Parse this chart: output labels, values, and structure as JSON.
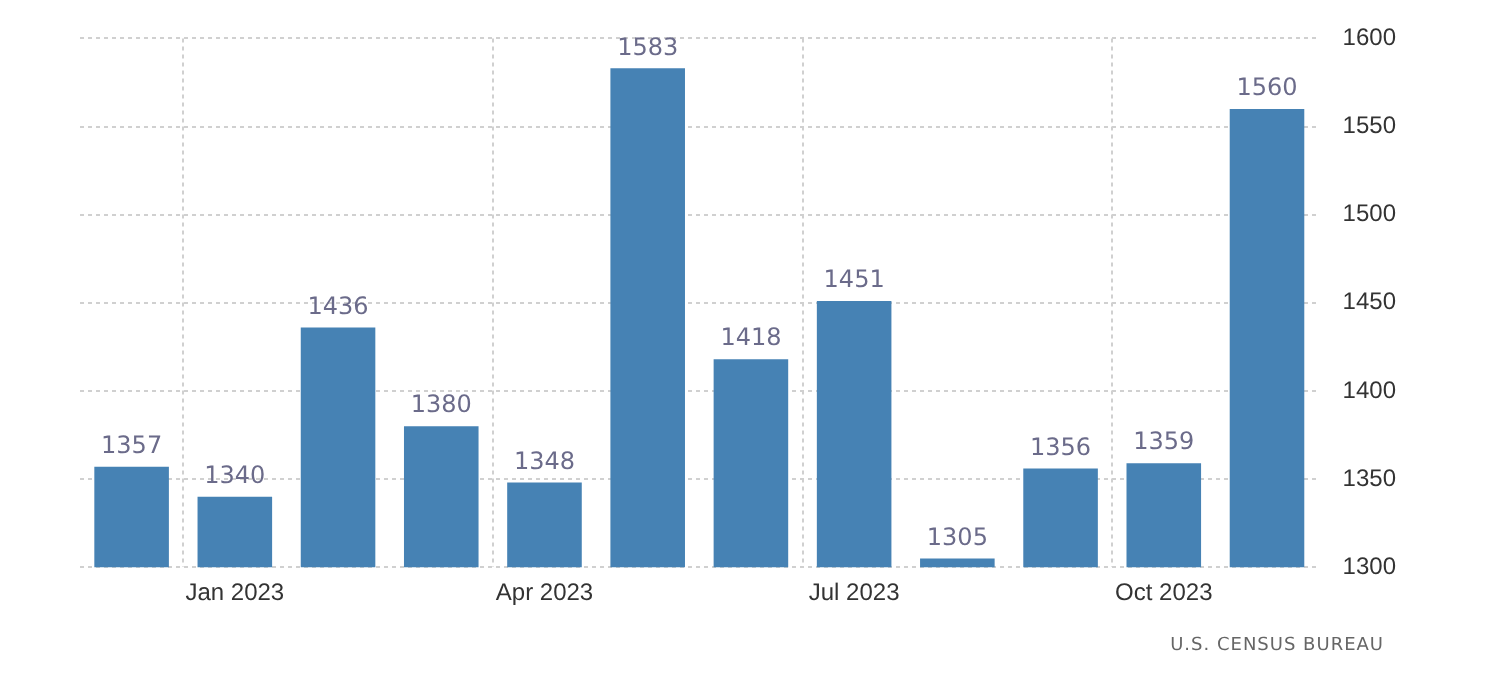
{
  "chart_data": {
    "type": "bar",
    "categories": [
      null,
      "Jan 2023",
      null,
      null,
      "Apr 2023",
      null,
      null,
      "Jul 2023",
      null,
      null,
      "Oct 2023",
      null
    ],
    "values": [
      1357,
      1340,
      1436,
      1380,
      1348,
      1583,
      1418,
      1451,
      1305,
      1356,
      1359,
      1560
    ],
    "color": "#4682b4",
    "ylim": [
      1300,
      1600
    ],
    "yticks": [
      1300,
      1350,
      1400,
      1450,
      1500,
      1550,
      1600
    ],
    "grid": true,
    "data_labels": true,
    "annotations": [
      "U.S. CENSUS BUREAU"
    ]
  }
}
